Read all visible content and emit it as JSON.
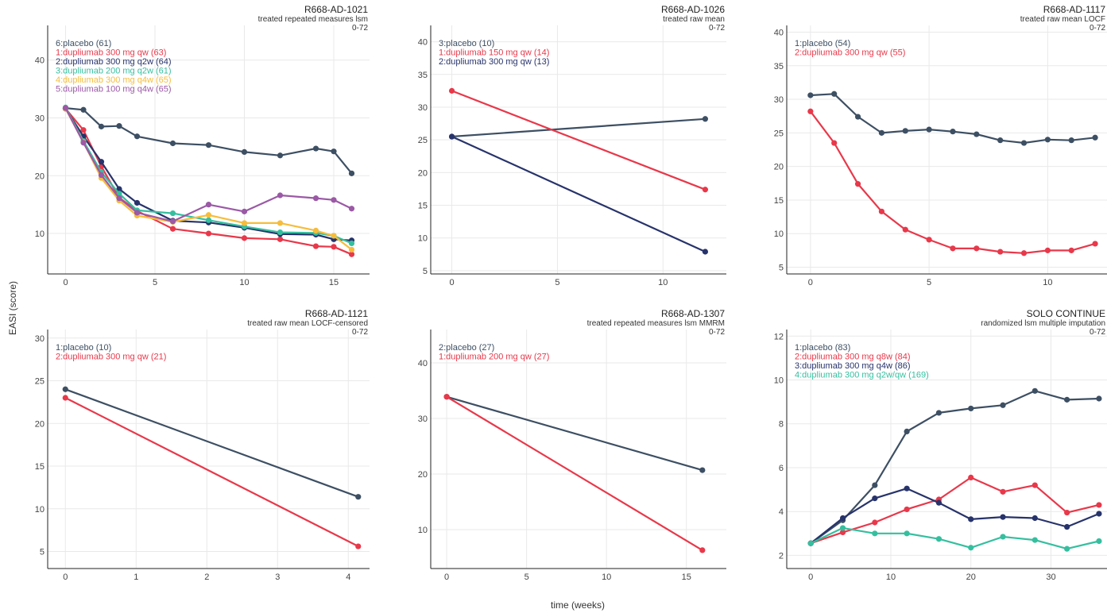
{
  "figure": {
    "ylabel": "EASI (score)",
    "xlabel": "time (weeks)"
  },
  "colors": {
    "placebo": "#3d4f63",
    "red": "#e8384a",
    "navy": "#27336b",
    "teal": "#35bf9f",
    "yellow": "#f6bd3c",
    "purple": "#9b59a6"
  },
  "chart_data": [
    {
      "type": "line",
      "title": "R668-AD-1021",
      "subtitle": "treated repeated measures lsm",
      "period": "0-72",
      "xlim": [
        -1,
        17
      ],
      "ylim": [
        3,
        46
      ],
      "xticks": [
        0,
        5,
        10,
        15
      ],
      "yticks": [
        10,
        20,
        30,
        40
      ],
      "grid": true,
      "legend_position": "top-left",
      "series": [
        {
          "name": "6:placebo (61)",
          "color": "#3d4f63",
          "x": [
            0,
            1,
            2,
            3,
            4,
            6,
            8,
            10,
            12,
            14,
            15,
            16
          ],
          "y": [
            31.7,
            31.4,
            28.5,
            28.6,
            26.8,
            25.6,
            25.3,
            24.1,
            23.5,
            24.7,
            24.2,
            20.4
          ]
        },
        {
          "name": "1:dupliumab 300 mg qw (63)",
          "color": "#e8384a",
          "x": [
            0,
            1,
            2,
            3,
            4,
            6,
            8,
            10,
            12,
            14,
            15,
            16
          ],
          "y": [
            31.6,
            27.9,
            21.6,
            16.2,
            13.9,
            10.8,
            10.0,
            9.2,
            9.0,
            7.8,
            7.7,
            6.4
          ]
        },
        {
          "name": "2:dupliumab 300 mg q2w (64)",
          "color": "#27336b",
          "x": [
            0,
            1,
            2,
            3,
            4,
            6,
            8,
            10,
            12,
            14,
            15,
            16
          ],
          "y": [
            31.6,
            26.8,
            22.4,
            17.7,
            15.3,
            12.2,
            11.9,
            11.0,
            9.9,
            9.8,
            9.0,
            8.8
          ]
        },
        {
          "name": "3:dupliumab 200 mg q2w (61)",
          "color": "#35bf9f",
          "x": [
            0,
            1,
            2,
            3,
            4,
            6,
            8,
            10,
            12,
            14,
            15,
            16
          ],
          "y": [
            31.8,
            26.0,
            20.6,
            16.9,
            14.0,
            13.5,
            12.3,
            11.2,
            10.2,
            10.1,
            9.6,
            8.3
          ]
        },
        {
          "name": "4:dupliumab 300 mg q4w (65)",
          "color": "#f6bd3c",
          "x": [
            0,
            1,
            2,
            3,
            4,
            6,
            8,
            10,
            12,
            14,
            15,
            16
          ],
          "y": [
            31.6,
            25.8,
            19.6,
            15.7,
            13.1,
            12.0,
            13.2,
            11.8,
            11.8,
            10.5,
            9.6,
            7.2
          ]
        },
        {
          "name": "5:dupliumab 100 mg q4w (65)",
          "color": "#9b59a6",
          "x": [
            0,
            1,
            2,
            3,
            4,
            6,
            8,
            10,
            12,
            14,
            15,
            16
          ],
          "y": [
            31.7,
            25.7,
            20.1,
            16.1,
            13.6,
            12.1,
            15.0,
            13.8,
            16.6,
            16.1,
            15.8,
            14.3
          ]
        }
      ]
    },
    {
      "type": "line",
      "title": "R668-AD-1026",
      "subtitle": "treated raw mean",
      "period": "0-72",
      "xlim": [
        -1,
        13
      ],
      "ylim": [
        4.5,
        42.5
      ],
      "xticks": [
        0,
        5,
        10
      ],
      "yticks": [
        5,
        10,
        15,
        20,
        25,
        30,
        35,
        40
      ],
      "grid": true,
      "legend_position": "top-left",
      "series": [
        {
          "name": "3:placebo (10)",
          "color": "#3d4f63",
          "x": [
            0,
            12
          ],
          "y": [
            25.5,
            28.2
          ]
        },
        {
          "name": "1:dupliumab 150 mg qw (14)",
          "color": "#e8384a",
          "x": [
            0,
            12
          ],
          "y": [
            32.5,
            17.4
          ]
        },
        {
          "name": "2:dupliumab 300 mg qw (13)",
          "color": "#27336b",
          "x": [
            0,
            12
          ],
          "y": [
            25.5,
            7.9
          ]
        }
      ]
    },
    {
      "type": "line",
      "title": "R668-AD-1117",
      "subtitle": "treated raw mean LOCF",
      "period": "0-72",
      "xlim": [
        -1,
        12.5
      ],
      "ylim": [
        4,
        41
      ],
      "xticks": [
        0,
        5,
        10
      ],
      "yticks": [
        5,
        10,
        15,
        20,
        25,
        30,
        35,
        40
      ],
      "grid": true,
      "legend_position": "top-left",
      "series": [
        {
          "name": "1:placebo (54)",
          "color": "#3d4f63",
          "x": [
            0,
            1,
            2,
            3,
            4,
            5,
            6,
            7,
            8,
            9,
            10,
            11,
            12
          ],
          "y": [
            30.6,
            30.8,
            27.4,
            25.0,
            25.3,
            25.5,
            25.2,
            24.8,
            23.9,
            23.5,
            24.0,
            23.9,
            24.3
          ]
        },
        {
          "name": "2:dupliumab 300 mg qw (55)",
          "color": "#e8384a",
          "x": [
            0,
            1,
            2,
            3,
            4,
            5,
            6,
            7,
            8,
            9,
            10,
            11,
            12
          ],
          "y": [
            28.2,
            23.5,
            17.4,
            13.3,
            10.6,
            9.1,
            7.8,
            7.8,
            7.3,
            7.1,
            7.5,
            7.5,
            8.5
          ]
        }
      ]
    },
    {
      "type": "line",
      "title": "R668-AD-1121",
      "subtitle": "treated raw mean LOCF-censored",
      "period": "0-72",
      "xlim": [
        -0.25,
        4.3
      ],
      "ylim": [
        3,
        31
      ],
      "xticks": [
        0,
        1,
        2,
        3,
        4
      ],
      "yticks": [
        5,
        10,
        15,
        20,
        25,
        30
      ],
      "grid": true,
      "legend_position": "top-left",
      "series": [
        {
          "name": "1:placebo (10)",
          "color": "#3d4f63",
          "x": [
            0,
            4.14
          ],
          "y": [
            24.0,
            11.4
          ]
        },
        {
          "name": "2:dupliumab 300 mg qw (21)",
          "color": "#e8384a",
          "x": [
            0,
            4.14
          ],
          "y": [
            23.0,
            5.6
          ]
        }
      ]
    },
    {
      "type": "line",
      "title": "R668-AD-1307",
      "subtitle": "treated repeated measures lsm MMRM",
      "period": "0-72",
      "xlim": [
        -1,
        17.5
      ],
      "ylim": [
        3,
        46
      ],
      "xticks": [
        0,
        5,
        10,
        15
      ],
      "yticks": [
        10,
        20,
        30,
        40
      ],
      "grid": true,
      "legend_position": "top-left",
      "series": [
        {
          "name": "2:placebo (27)",
          "color": "#3d4f63",
          "x": [
            0,
            16
          ],
          "y": [
            33.9,
            20.7
          ]
        },
        {
          "name": "1:dupliumab 200 mg qw (27)",
          "color": "#e8384a",
          "x": [
            0,
            16
          ],
          "y": [
            33.9,
            6.3
          ]
        }
      ]
    },
    {
      "type": "line",
      "title": "SOLO CONTINUE",
      "subtitle": "randomized lsm multiple imputation",
      "period": "0-72",
      "xlim": [
        -3,
        37
      ],
      "ylim": [
        1.4,
        12.3
      ],
      "xticks": [
        0,
        10,
        20,
        30
      ],
      "yticks": [
        2,
        4,
        6,
        8,
        10,
        12
      ],
      "grid": true,
      "legend_position": "top-left",
      "series": [
        {
          "name": "1:placebo (83)",
          "color": "#3d4f63",
          "x": [
            0,
            4,
            8,
            12,
            16,
            20,
            24,
            28,
            32,
            36
          ],
          "y": [
            2.55,
            3.6,
            5.2,
            7.65,
            8.5,
            8.7,
            8.85,
            9.5,
            9.1,
            9.15
          ]
        },
        {
          "name": "2:dupliumab 300 mg q8w (84)",
          "color": "#e8384a",
          "x": [
            0,
            4,
            8,
            12,
            16,
            20,
            24,
            28,
            32,
            36
          ],
          "y": [
            2.55,
            3.05,
            3.5,
            4.1,
            4.55,
            5.55,
            4.9,
            5.2,
            3.95,
            4.3
          ]
        },
        {
          "name": "3:dupliumab 300 mg q4w (86)",
          "color": "#27336b",
          "x": [
            0,
            4,
            8,
            12,
            16,
            20,
            24,
            28,
            32,
            36
          ],
          "y": [
            2.55,
            3.7,
            4.6,
            5.05,
            4.4,
            3.65,
            3.75,
            3.7,
            3.3,
            3.9
          ]
        },
        {
          "name": "4:dupliumab 300 mg q2w/qw (169)",
          "color": "#35bf9f",
          "x": [
            0,
            4,
            8,
            12,
            16,
            20,
            24,
            28,
            32,
            36
          ],
          "y": [
            2.55,
            3.25,
            3.0,
            3.0,
            2.75,
            2.35,
            2.85,
            2.7,
            2.3,
            2.65
          ]
        }
      ]
    }
  ]
}
